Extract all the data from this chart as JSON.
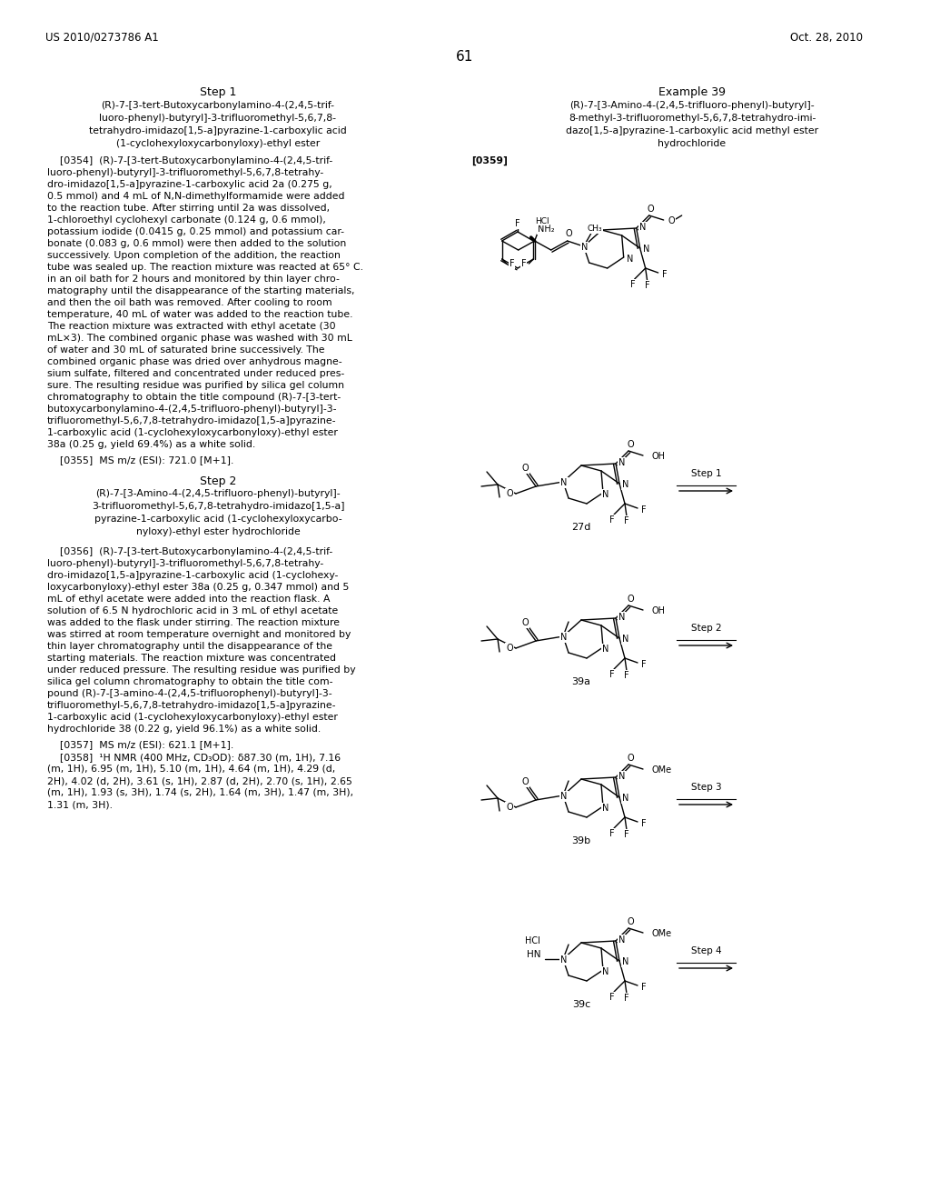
{
  "page_number": "61",
  "header_left": "US 2010/0273786 A1",
  "header_right": "Oct. 28, 2010",
  "background_color": "#ffffff",
  "text_color": "#000000"
}
